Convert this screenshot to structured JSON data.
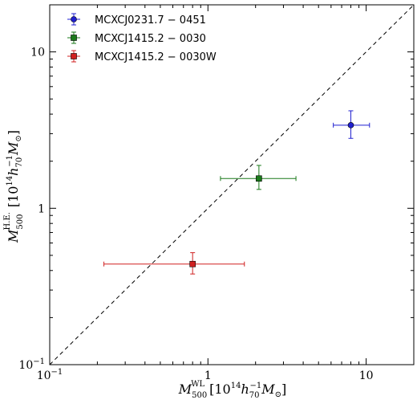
{
  "chart_data": {
    "type": "scatter",
    "xscale": "log",
    "yscale": "log",
    "xlim": [
      0.1,
      20
    ],
    "ylim": [
      0.1,
      20
    ],
    "x_tick_labels": [
      "10^-1",
      "1",
      "10"
    ],
    "y_tick_labels": [
      "10^-1",
      "1",
      "10"
    ],
    "xlabel": "M_500^WL [10^14 h_70^-1 M_⊙]",
    "ylabel": "M_500^H.E. [10^14 h_70^-1 M_⊙]",
    "reference_line": "y = x (dashed)",
    "legend_position": "top-left",
    "series": [
      {
        "name": "MCXCJ0231.7 − 0451",
        "color": "#1f1fd0",
        "marker": "circle",
        "x": 8.0,
        "y": 3.4,
        "xerr": [
          6.2,
          10.5
        ],
        "yerr": [
          2.8,
          4.2
        ]
      },
      {
        "name": "MCXCJ1415.2 − 0030",
        "color": "#1a7a1a",
        "marker": "square",
        "x": 2.1,
        "y": 1.55,
        "xerr": [
          1.2,
          3.6
        ],
        "yerr": [
          1.32,
          1.88
        ]
      },
      {
        "name": "MCXCJ1415.2 − 0030W",
        "color": "#d02020",
        "marker": "square",
        "x": 0.8,
        "y": 0.44,
        "xerr": [
          0.22,
          1.7
        ],
        "yerr": [
          0.38,
          0.52
        ]
      }
    ]
  }
}
